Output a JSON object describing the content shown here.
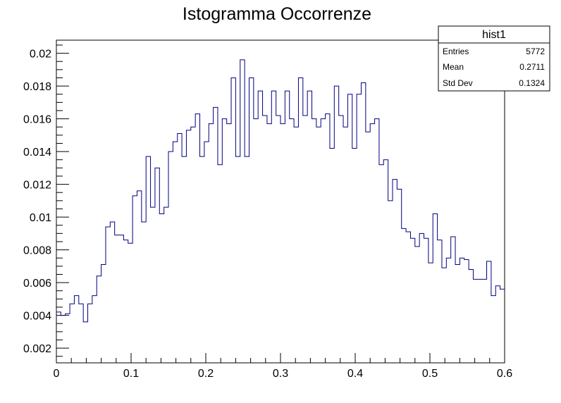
{
  "chart_data": {
    "type": "histogram",
    "title": "Istogramma Occorrenze",
    "xlabel": "",
    "ylabel": "",
    "xlim": [
      0,
      0.6
    ],
    "ylim": [
      0.0011,
      0.0208
    ],
    "bins": 100,
    "bin_width": 0.006,
    "x_ticks": [
      0,
      0.1,
      0.2,
      0.3,
      0.4,
      0.5,
      0.6
    ],
    "x_tick_labels": [
      "0",
      "0.1",
      "0.2",
      "0.3",
      "0.4",
      "0.5",
      "0.6"
    ],
    "y_ticks": [
      0.002,
      0.004,
      0.006,
      0.008,
      0.01,
      0.012,
      0.014,
      0.016,
      0.018,
      0.02
    ],
    "y_tick_labels": [
      "0.002",
      "0.004",
      "0.006",
      "0.008",
      "0.01",
      "0.012",
      "0.014",
      "0.016",
      "0.018",
      "0.02"
    ],
    "values": [
      0.0042,
      0.004,
      0.0041,
      0.0047,
      0.0052,
      0.0047,
      0.0036,
      0.0047,
      0.0052,
      0.0064,
      0.0071,
      0.0094,
      0.0097,
      0.0089,
      0.0089,
      0.0086,
      0.0084,
      0.0113,
      0.0116,
      0.0097,
      0.0137,
      0.0106,
      0.013,
      0.0102,
      0.0106,
      0.014,
      0.0146,
      0.0151,
      0.0137,
      0.0153,
      0.0155,
      0.0163,
      0.0137,
      0.0146,
      0.0157,
      0.0167,
      0.0132,
      0.016,
      0.0157,
      0.0185,
      0.0137,
      0.0196,
      0.0137,
      0.0185,
      0.016,
      0.0177,
      0.0162,
      0.0157,
      0.0177,
      0.0162,
      0.0157,
      0.0177,
      0.016,
      0.0155,
      0.0185,
      0.0162,
      0.0177,
      0.016,
      0.0155,
      0.016,
      0.0163,
      0.0142,
      0.018,
      0.0162,
      0.0155,
      0.0175,
      0.0142,
      0.0175,
      0.0182,
      0.0152,
      0.0157,
      0.016,
      0.0132,
      0.0135,
      0.011,
      0.0123,
      0.0117,
      0.0093,
      0.0091,
      0.0087,
      0.0082,
      0.009,
      0.0087,
      0.0072,
      0.0102,
      0.0086,
      0.0069,
      0.0075,
      0.0088,
      0.0071,
      0.0075,
      0.0074,
      0.0068,
      0.0062,
      0.0062,
      0.0062,
      0.0073,
      0.0052,
      0.0058,
      0.0056
    ],
    "line_color": "#000080",
    "stats_box": {
      "name": "hist1",
      "rows": [
        {
          "label": "Entries",
          "value": "5772"
        },
        {
          "label": "Mean",
          "value": "0.2711"
        },
        {
          "label": "Std Dev",
          "value": "0.1324"
        }
      ]
    }
  }
}
